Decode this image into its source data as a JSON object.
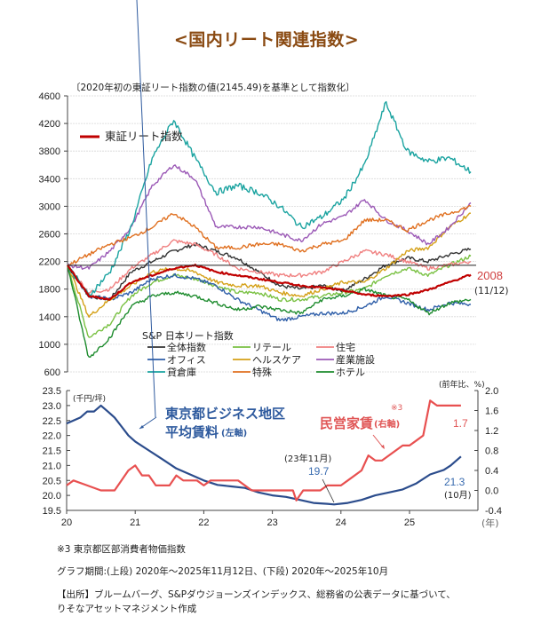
{
  "title": "<国内リート関連指数>",
  "chart_data": [
    {
      "type": "line",
      "subtitle": "〔2020年初の東証リート指数の値(2145.49)を基準として指数化〕",
      "ylim": [
        600,
        4600
      ],
      "yticks": [
        4600,
        4200,
        3800,
        3400,
        3000,
        2600,
        2200,
        1800,
        1400,
        1000,
        600
      ],
      "x_range": [
        "2020-01",
        "2025-11-12"
      ],
      "baseline": 2145.49,
      "grid": true,
      "legend_main": "東証リート指数",
      "legend_group_title": "S&P 日本リート指数",
      "end_label": {
        "value": "2008",
        "date": "(11/12)"
      },
      "series": [
        {
          "name": "東証リート指数",
          "color": "#c00000",
          "values": [
            2145,
            1700,
            1650,
            1900,
            2000,
            2100,
            2150,
            2050,
            2000,
            1950,
            1900,
            1850,
            1820,
            1780,
            1720,
            1700,
            1720,
            1790,
            1900,
            2008
          ]
        },
        {
          "name": "全体指数",
          "color": "#333333",
          "values": [
            2145,
            1700,
            1650,
            2050,
            2200,
            2350,
            2450,
            2350,
            2250,
            2050,
            1850,
            1800,
            1850,
            1780,
            1950,
            2150,
            2250,
            2200,
            2300,
            2380
          ]
        },
        {
          "name": "リテール",
          "color": "#7ac143",
          "values": [
            2145,
            1100,
            1300,
            1700,
            1900,
            2000,
            1950,
            1850,
            1750,
            1750,
            1650,
            1650,
            1700,
            1750,
            1800,
            2000,
            2100,
            2000,
            2150,
            2280
          ]
        },
        {
          "name": "住宅",
          "color": "#f08080",
          "values": [
            2145,
            1750,
            1800,
            2100,
            2300,
            2500,
            2450,
            2300,
            2100,
            2050,
            2000,
            2000,
            2050,
            2200,
            2350,
            2300,
            2200,
            2100,
            2150,
            2200
          ]
        },
        {
          "name": "オフィス",
          "color": "#2e5ea8",
          "values": [
            2145,
            1700,
            1650,
            1750,
            1950,
            2000,
            1950,
            1850,
            1650,
            1500,
            1350,
            1400,
            1450,
            1450,
            1550,
            1700,
            1600,
            1500,
            1600,
            1580
          ]
        },
        {
          "name": "ヘルスケア",
          "color": "#d4a017",
          "values": [
            2145,
            1400,
            1650,
            1850,
            2050,
            2100,
            2050,
            1900,
            1850,
            1850,
            1750,
            1700,
            1800,
            1900,
            1900,
            2100,
            2350,
            2400,
            2700,
            2900
          ]
        },
        {
          "name": "産業施設",
          "color": "#9b59b6",
          "values": [
            2145,
            2100,
            2350,
            2700,
            3300,
            3600,
            3400,
            2700,
            2700,
            2700,
            2600,
            2500,
            2750,
            2850,
            3100,
            2800,
            2650,
            2450,
            2700,
            3050
          ]
        },
        {
          "name": "貸倉庫",
          "color": "#1aa3a0",
          "values": [
            2145,
            1700,
            2050,
            2700,
            3700,
            4250,
            3700,
            3200,
            3300,
            3200,
            3000,
            2700,
            2850,
            3100,
            3600,
            4500,
            3800,
            3650,
            3700,
            3500
          ]
        },
        {
          "name": "特殊",
          "color": "#e07020",
          "values": [
            2145,
            2300,
            2450,
            2550,
            2700,
            2900,
            2700,
            2400,
            2400,
            2450,
            2450,
            2350,
            2450,
            2500,
            2800,
            2800,
            2650,
            2800,
            2900,
            3000
          ]
        },
        {
          "name": "ホテル",
          "color": "#1e8c2e",
          "values": [
            2145,
            800,
            1100,
            1550,
            1700,
            1750,
            1700,
            1600,
            1500,
            1550,
            1500,
            1450,
            1650,
            1700,
            1800,
            1700,
            1650,
            1450,
            1600,
            1650
          ]
        }
      ]
    },
    {
      "type": "line",
      "x_ticks": [
        "20",
        "21",
        "22",
        "23",
        "24",
        "25"
      ],
      "x_unit": "(年)",
      "left_axis": {
        "label": "(千円/坪)",
        "ylim": [
          19.5,
          23.5
        ],
        "ticks": [
          "23.5",
          "23.0",
          "22.5",
          "22.0",
          "21.5",
          "21.0",
          "20.5",
          "20.0",
          "19.5"
        ]
      },
      "right_axis": {
        "label": "(前年比、%)",
        "ylim": [
          -0.4,
          2.0
        ],
        "ticks": [
          "2.0",
          "1.6",
          "1.2",
          "0.8",
          "0.4",
          "0.0",
          "-0.4"
        ]
      },
      "series": [
        {
          "name": "東京都ビジネス地区 平均賃料",
          "axis": "left",
          "color": "#2b4c8c",
          "x": [
            2020.0,
            2020.1,
            2020.2,
            2020.3,
            2020.4,
            2020.5,
            2020.6,
            2020.7,
            2020.8,
            2020.9,
            2021.0,
            2021.2,
            2021.4,
            2021.6,
            2021.8,
            2022.0,
            2022.2,
            2022.4,
            2022.6,
            2022.8,
            2023.0,
            2023.2,
            2023.4,
            2023.6,
            2023.8,
            2023.9,
            2024.1,
            2024.3,
            2024.5,
            2024.7,
            2024.9,
            2025.1,
            2025.3,
            2025.5,
            2025.6,
            2025.75
          ],
          "values": [
            22.4,
            22.5,
            22.6,
            22.8,
            22.8,
            23.0,
            22.8,
            22.6,
            22.3,
            22.0,
            21.8,
            21.5,
            21.2,
            20.9,
            20.7,
            20.5,
            20.35,
            20.3,
            20.25,
            20.1,
            20.0,
            19.95,
            19.85,
            19.75,
            19.72,
            19.7,
            19.75,
            19.85,
            20.0,
            20.1,
            20.2,
            20.4,
            20.7,
            20.85,
            21.0,
            21.3
          ]
        },
        {
          "name": "民営家賃",
          "axis": "right",
          "color": "#e85050",
          "x": [
            2020.0,
            2020.1,
            2020.3,
            2020.5,
            2020.7,
            2020.9,
            2021.0,
            2021.1,
            2021.2,
            2021.3,
            2021.5,
            2021.6,
            2021.7,
            2021.9,
            2022.0,
            2022.1,
            2022.3,
            2022.5,
            2022.7,
            2022.9,
            2023.1,
            2023.3,
            2023.35,
            2023.45,
            2023.7,
            2023.8,
            2024.0,
            2024.1,
            2024.3,
            2024.4,
            2024.5,
            2024.6,
            2024.7,
            2024.9,
            2025.0,
            2025.1,
            2025.2,
            2025.3,
            2025.4,
            2025.5,
            2025.75
          ],
          "values": [
            0.1,
            0.2,
            0.1,
            0.0,
            0.0,
            0.4,
            0.5,
            0.3,
            0.3,
            0.1,
            0.1,
            0.3,
            0.2,
            0.2,
            0.1,
            0.2,
            0.2,
            0.2,
            0.0,
            0.0,
            0.0,
            0.0,
            -0.2,
            0.0,
            0.0,
            0.1,
            0.1,
            0.2,
            0.4,
            0.7,
            0.6,
            0.6,
            0.7,
            0.9,
            0.9,
            1.0,
            1.1,
            1.8,
            1.7,
            1.7,
            1.7
          ]
        }
      ],
      "annotations": {
        "rent_label_line1": "東京都ビジネス地区",
        "rent_label_line2": "平均賃料",
        "rent_axis_note": "(左軸)",
        "cpi_label": "民営家賃",
        "cpi_axis_note": "(右軸)",
        "cpi_footnote_mark": "※3",
        "min_date": "(23年11月)",
        "min_value": "19.7",
        "last_rent_value": "21.3",
        "last_rent_date": "(10月)",
        "last_cpi_value": "1.7"
      }
    }
  ],
  "notes": {
    "footnote3": "※3  東京都区部消費者物価指数",
    "period": "グラフ期間:(上段) 2020年～2025年11月12日、(下段) 2020年～2025年10月",
    "source_line1": "【出所】ブルームバーグ、S&Pダウジョーンズインデックス、総務省の公表データに基づいて、",
    "source_line2": "りそなアセットマネジメント作成"
  }
}
